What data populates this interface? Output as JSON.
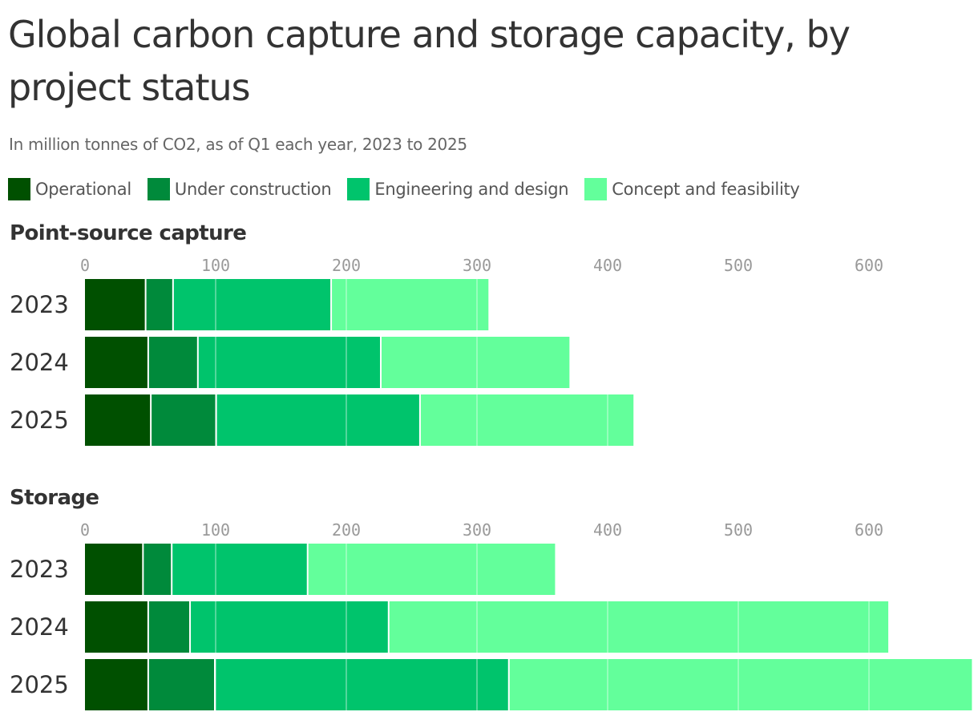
{
  "title": "Global carbon capture and storage capacity, by project status",
  "subtitle": "In million tonnes of CO2, as of Q1 each year, 2023 to 2025",
  "legend": [
    {
      "label": "Operational",
      "color": "#005000"
    },
    {
      "label": "Under construction",
      "color": "#008a3b"
    },
    {
      "label": "Engineering and design",
      "color": "#00c46c"
    },
    {
      "label": "Concept and feasibility",
      "color": "#63ff9b"
    }
  ],
  "chart_data": [
    {
      "type": "bar",
      "orientation": "horizontal",
      "stacked": true,
      "title": "Point-source capture",
      "categories": [
        "2023",
        "2024",
        "2025"
      ],
      "xlim": [
        0,
        680
      ],
      "ticks": [
        0,
        100,
        200,
        300,
        400,
        500,
        600
      ],
      "tick_labels": [
        "0",
        "100",
        "200",
        "300",
        "400",
        "500",
        "600"
      ],
      "grid": true,
      "series": [
        {
          "name": "Operational",
          "color": "#005000",
          "values": [
            47,
            49,
            51
          ]
        },
        {
          "name": "Under construction",
          "color": "#008a3b",
          "values": [
            21,
            38,
            50
          ]
        },
        {
          "name": "Engineering and design",
          "color": "#00c46c",
          "values": [
            121,
            140,
            156
          ]
        },
        {
          "name": "Concept and feasibility",
          "color": "#63ff9b",
          "values": [
            121,
            145,
            164
          ]
        }
      ]
    },
    {
      "type": "bar",
      "orientation": "horizontal",
      "stacked": true,
      "title": "Storage",
      "categories": [
        "2023",
        "2024",
        "2025"
      ],
      "xlim": [
        0,
        680
      ],
      "ticks": [
        0,
        100,
        200,
        300,
        400,
        500,
        600
      ],
      "tick_labels": [
        "0",
        "100",
        "200",
        "300",
        "400",
        "500",
        "600"
      ],
      "grid": true,
      "series": [
        {
          "name": "Operational",
          "color": "#005000",
          "values": [
            45,
            49,
            49
          ]
        },
        {
          "name": "Under construction",
          "color": "#008a3b",
          "values": [
            22,
            32,
            51
          ]
        },
        {
          "name": "Engineering and design",
          "color": "#00c46c",
          "values": [
            104,
            152,
            225
          ]
        },
        {
          "name": "Concept and feasibility",
          "color": "#63ff9b",
          "values": [
            190,
            383,
            355
          ]
        }
      ]
    }
  ]
}
